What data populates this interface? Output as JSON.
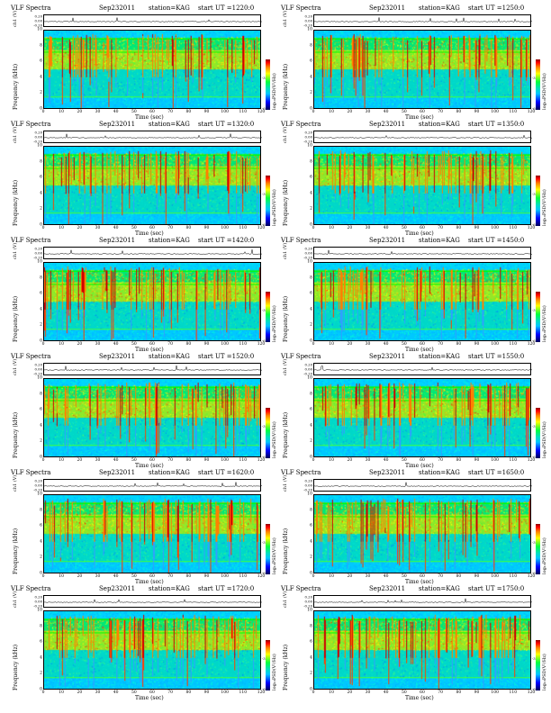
{
  "common": {
    "title": "VLF Spectra",
    "date": "Sep232011",
    "station": "station=KAG",
    "xlabel": "Time (sec)",
    "ylabel": "Frequency (kHz)",
    "ylabel_top": "ch1",
    "trace_label": "ch1 (V)",
    "colorbar_label": "log₁₀PSD(V²/Hz)",
    "colorbar_ticks": [
      "-3",
      "-6"
    ],
    "trace_ticks": [
      "0.20",
      "0.00",
      "-0.20"
    ],
    "x_ticks": [
      "0",
      "10",
      "20",
      "30",
      "40",
      "50",
      "60",
      "70",
      "80",
      "90",
      "100",
      "110",
      "120"
    ],
    "y_ticks": [
      "0",
      "2",
      "4",
      "6",
      "8",
      "10"
    ],
    "colors": {
      "low": "#00c8ff",
      "mid": "#00ff40",
      "high": "#ffff00",
      "peak": "#ff0000"
    }
  },
  "chart_data": [
    {
      "type": "heatmap",
      "start": "start UT =1220:0",
      "xlim": [
        0,
        120
      ],
      "ylim": [
        0,
        10
      ]
    },
    {
      "type": "heatmap",
      "start": "start UT =1250:0",
      "xlim": [
        0,
        120
      ],
      "ylim": [
        0,
        10
      ]
    },
    {
      "type": "heatmap",
      "start": "start UT =1320:0",
      "xlim": [
        0,
        120
      ],
      "ylim": [
        0,
        10
      ]
    },
    {
      "type": "heatmap",
      "start": "start UT =1350:0",
      "xlim": [
        0,
        120
      ],
      "ylim": [
        0,
        10
      ]
    },
    {
      "type": "heatmap",
      "start": "start UT =1420:0",
      "xlim": [
        0,
        120
      ],
      "ylim": [
        0,
        10
      ]
    },
    {
      "type": "heatmap",
      "start": "start UT =1450:0",
      "xlim": [
        0,
        120
      ],
      "ylim": [
        0,
        10
      ]
    },
    {
      "type": "heatmap",
      "start": "start UT =1520:0",
      "xlim": [
        0,
        120
      ],
      "ylim": [
        0,
        10
      ]
    },
    {
      "type": "heatmap",
      "start": "start UT =1550:0",
      "xlim": [
        0,
        120
      ],
      "ylim": [
        0,
        10
      ]
    },
    {
      "type": "heatmap",
      "start": "start UT =1620:0",
      "xlim": [
        0,
        120
      ],
      "ylim": [
        0,
        10
      ]
    },
    {
      "type": "heatmap",
      "start": "start UT =1650:0",
      "xlim": [
        0,
        120
      ],
      "ylim": [
        0,
        10
      ]
    },
    {
      "type": "heatmap",
      "start": "start UT =1720:0",
      "xlim": [
        0,
        120
      ],
      "ylim": [
        0,
        10
      ]
    },
    {
      "type": "heatmap",
      "start": "start UT =1750:0",
      "xlim": [
        0,
        120
      ],
      "ylim": [
        0,
        10
      ]
    }
  ]
}
